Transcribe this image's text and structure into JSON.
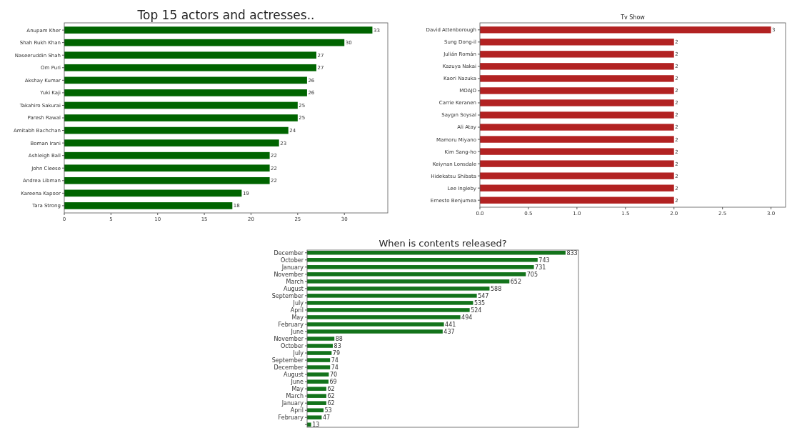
{
  "chart_data": [
    {
      "type": "bar",
      "orientation": "horizontal",
      "title": "Top 15 actors and actresses..",
      "categories": [
        "Anupam Kher",
        "Shah Rukh Khan",
        "Naseeruddin Shah",
        "Om Puri",
        "Akshay Kumar",
        "Yuki Kaji",
        "Takahiro Sakurai",
        "Paresh Rawal",
        "Amitabh Bachchan",
        "Boman Irani",
        "Ashleigh Ball",
        "John Cleese",
        "Andrea Libman",
        "Kareena Kapoor",
        "Tara Strong"
      ],
      "values": [
        33,
        30,
        27,
        27,
        26,
        26,
        25,
        25,
        24,
        23,
        22,
        22,
        22,
        19,
        18
      ],
      "color": "#006400",
      "xlim": [
        0,
        34.65
      ],
      "xticks": [
        0,
        5,
        10,
        15,
        20,
        25,
        30
      ],
      "data_labels": true,
      "grid": false
    },
    {
      "type": "bar",
      "orientation": "horizontal",
      "title": "Tv Show",
      "categories": [
        "David Attenborough",
        "Sung Dong-il",
        "Julián Román",
        "Kazuya Nakai",
        "Kaori Nazuka",
        "MOAJO",
        "Carrie Keranen",
        "Saygın Soysal",
        "Ali Atay",
        "Mamoru Miyano",
        "Kim Sang-ho",
        "Keiynan Lonsdale",
        "Hidekatsu Shibata",
        "Lee Ingleby",
        "Ernesto Benjumea"
      ],
      "values": [
        3,
        2,
        2,
        2,
        2,
        2,
        2,
        2,
        2,
        2,
        2,
        2,
        2,
        2,
        2
      ],
      "color": "#b22222",
      "xlim": [
        0,
        3.15
      ],
      "xticks": [
        {
          "value": 0,
          "label": "0.0"
        },
        {
          "value": 0.5,
          "label": "0.5"
        },
        {
          "value": 1,
          "label": "1.0"
        },
        {
          "value": 1.5,
          "label": "1.5"
        },
        {
          "value": 2,
          "label": "2.0"
        },
        {
          "value": 2.5,
          "label": "2.5"
        },
        {
          "value": 3,
          "label": "3.0"
        }
      ],
      "data_labels": true,
      "grid": false
    },
    {
      "type": "bar",
      "orientation": "horizontal",
      "title": "When is contents released?",
      "categories": [
        "December",
        "October",
        "January",
        "November",
        "March",
        "August",
        "September",
        "July",
        "April",
        "May",
        "February",
        "June",
        "November",
        "October",
        "July",
        "September",
        "December",
        "August",
        "June",
        "May",
        "March",
        "January",
        "April",
        "February",
        null
      ],
      "values": [
        833,
        743,
        731,
        705,
        652,
        588,
        547,
        535,
        524,
        494,
        441,
        437,
        88,
        83,
        79,
        74,
        74,
        70,
        69,
        62,
        62,
        62,
        53,
        47,
        13
      ],
      "color": "#13731b",
      "tick_labels": "y",
      "data_labels": true,
      "grid": false
    }
  ]
}
